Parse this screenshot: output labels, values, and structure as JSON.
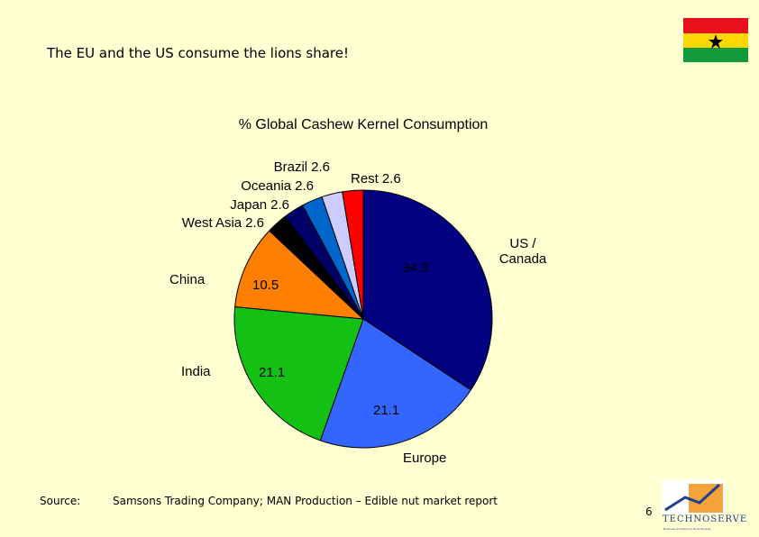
{
  "slide_title": "The EU and the US consume the lions share!",
  "chart_data": {
    "type": "pie",
    "title": "% Global Cashew Kernel Consumption",
    "categories": [
      "US / Canada",
      "Europe",
      "India",
      "China",
      "West Asia",
      "Japan",
      "Oceania",
      "Brazil",
      "Rest"
    ],
    "values": [
      34.3,
      21.1,
      21.1,
      10.5,
      2.6,
      2.6,
      2.6,
      2.6,
      2.6
    ],
    "colors": [
      "#000080",
      "#3366ff",
      "#13c013",
      "#ff8000",
      "#000000",
      "#000066",
      "#0066cc",
      "#ccccff",
      "#ff0000"
    ]
  },
  "source_label": "Source:",
  "source": "Samsons Trading Company; MAN Production – Edible nut market report",
  "page_number": "6",
  "logo": {
    "name": "TECHNOSERVE",
    "tagline": "Business Solutions to Rural Poverty"
  }
}
